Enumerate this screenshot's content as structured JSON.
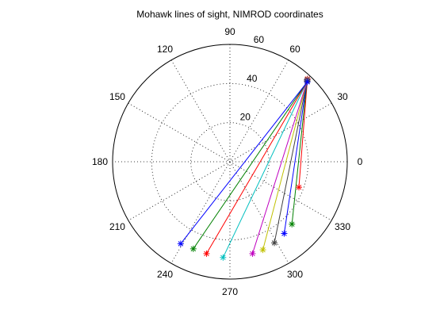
{
  "chart_data": {
    "type": "scatter",
    "subtype": "polar",
    "title": "Mohawk lines of sight, NIMROD coordinates",
    "rlim": [
      0,
      60
    ],
    "radial_ticks": [
      "20",
      "40",
      "60"
    ],
    "angular_ticks": [
      "0",
      "30",
      "60",
      "90",
      "120",
      "150",
      "180",
      "210",
      "240",
      "270",
      "300",
      "330"
    ],
    "grid": true,
    "marker": "*",
    "series": [
      {
        "color": "#ff0000",
        "points": [
          [
            58.0,
            46.9
          ],
          [
            37.6,
            339.7
          ]
        ]
      },
      {
        "color": "#008000",
        "points": [
          [
            57.6,
            46.7
          ],
          [
            45.0,
            314.8
          ]
        ]
      },
      {
        "color": "#0000ff",
        "points": [
          [
            57.5,
            46.6
          ],
          [
            46.0,
            307.1
          ]
        ]
      },
      {
        "color": "#404040",
        "points": [
          [
            57.4,
            46.5
          ],
          [
            47.3,
            298.7
          ]
        ]
      },
      {
        "color": "#c0c000",
        "points": [
          [
            57.3,
            46.4
          ],
          [
            48.1,
            290.5
          ]
        ]
      },
      {
        "color": "#bf00bf",
        "points": [
          [
            57.2,
            46.3
          ],
          [
            48.4,
            283.8
          ]
        ]
      },
      {
        "color": "#00bfbf",
        "points": [
          [
            57.1,
            46.2
          ],
          [
            49.1,
            265.9
          ]
        ]
      },
      {
        "color": "#ff0000",
        "points": [
          [
            57.0,
            46.1
          ],
          [
            48.5,
            255.7
          ]
        ]
      },
      {
        "color": "#008000",
        "points": [
          [
            56.9,
            46.0
          ],
          [
            48.3,
            247.2
          ]
        ]
      },
      {
        "color": "#0000ff",
        "points": [
          [
            56.8,
            45.9
          ],
          [
            48.9,
            239.0
          ]
        ]
      }
    ]
  }
}
